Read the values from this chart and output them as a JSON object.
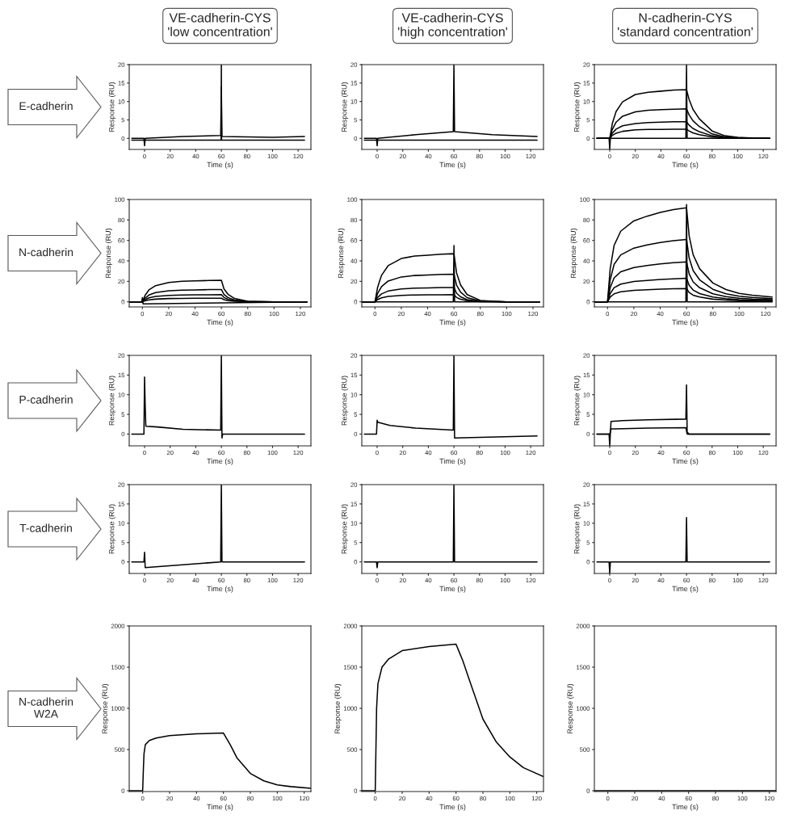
{
  "chart_data": [
    {
      "type": "line",
      "title": "VE-cadherin-CYS\n'low concentration'",
      "annotations": [
        "E-cadherin"
      ],
      "xlabel": "Time (s)",
      "ylabel": "Response (RU)",
      "xlim": [
        -12,
        130
      ],
      "ylim": [
        -3,
        20
      ],
      "xticks": [
        0,
        20,
        40,
        60,
        80,
        100,
        120
      ],
      "yticks": [
        0,
        5,
        10,
        15,
        20
      ],
      "series": [
        {
          "color": "#000000",
          "x": [
            -10,
            -0.5,
            0,
            0.5,
            30,
            59.5,
            60,
            60.5,
            100,
            125
          ],
          "values": [
            0,
            0,
            -2,
            0,
            0.5,
            0.8,
            14,
            0.5,
            0.3,
            0.5
          ]
        },
        {
          "color": "#000000",
          "x": [
            -10,
            59.8,
            60,
            60.2,
            125
          ],
          "values": [
            -0.5,
            -0.5,
            20,
            -0.5,
            -0.5
          ]
        }
      ]
    },
    {
      "type": "line",
      "title": "VE-cadherin-CYS\n'high concentration'",
      "xlabel": "Time (s)",
      "ylabel": "Response (RU)",
      "xlim": [
        -12,
        130
      ],
      "ylim": [
        -3,
        20
      ],
      "xticks": [
        0,
        20,
        40,
        60,
        80,
        100,
        120
      ],
      "yticks": [
        0,
        5,
        10,
        15,
        20
      ],
      "series": [
        {
          "color": "#000000",
          "x": [
            -10,
            -0.5,
            0,
            0.5,
            30,
            59.5,
            60,
            60.5,
            90,
            125
          ],
          "values": [
            0,
            0,
            -2,
            0,
            1,
            1.8,
            20,
            1.8,
            1,
            0.5
          ]
        },
        {
          "color": "#000000",
          "x": [
            -10,
            125
          ],
          "values": [
            -0.5,
            -0.5
          ]
        }
      ]
    },
    {
      "type": "line",
      "title": "N-cadherin-CYS\n'standard concentration'",
      "xlabel": "Time (s)",
      "ylabel": "Response (RU)",
      "xlim": [
        -12,
        130
      ],
      "ylim": [
        -3,
        20
      ],
      "xticks": [
        0,
        20,
        40,
        60,
        80,
        100,
        120
      ],
      "yticks": [
        0,
        5,
        10,
        15,
        20
      ],
      "x": [
        -10,
        0,
        2,
        5,
        10,
        20,
        30,
        40,
        50,
        60,
        62,
        65,
        70,
        80,
        90,
        100,
        110,
        125
      ],
      "series": [
        {
          "color": "#000000",
          "values": [
            0,
            0,
            4,
            7.3,
            9.9,
            11.9,
            12.5,
            12.8,
            13.1,
            13.2,
            10.6,
            7.9,
            5.3,
            2,
            0.7,
            0.3,
            0.1,
            0
          ]
        },
        {
          "color": "#000000",
          "values": [
            0,
            0,
            2.4,
            4.4,
            6,
            7.2,
            7.6,
            7.8,
            7.9,
            8,
            6.4,
            4.8,
            3.2,
            1.2,
            0.4,
            0.2,
            0.1,
            0
          ]
        },
        {
          "color": "#000000",
          "values": [
            0,
            0,
            1.4,
            2.5,
            3.4,
            4,
            4.3,
            4.4,
            4.5,
            4.5,
            3.6,
            2.7,
            1.8,
            0.7,
            0.2,
            0.1,
            0,
            0
          ]
        },
        {
          "color": "#000000",
          "values": [
            0,
            0,
            0.8,
            1.4,
            1.9,
            2.3,
            2.4,
            2.4,
            2.5,
            2.5,
            2,
            1.5,
            1,
            0.4,
            0.1,
            0,
            0,
            0
          ]
        },
        {
          "color": "#000000",
          "x": [
            -10,
            -0.5,
            0,
            0.5,
            59.5,
            60,
            60.5,
            125
          ],
          "values": [
            0,
            0,
            -3,
            0,
            0,
            20,
            0,
            0
          ]
        }
      ]
    },
    {
      "type": "line",
      "annotations": [
        "N-cadherin"
      ],
      "xlabel": "Time (s)",
      "ylabel": "Response (RU)",
      "xlim": [
        -10,
        128
      ],
      "ylim": [
        -5,
        100
      ],
      "xticks": [
        0,
        20,
        40,
        60,
        80,
        100,
        120
      ],
      "yticks": [
        0,
        20,
        40,
        60,
        80,
        100
      ],
      "x": [
        -10,
        0,
        2,
        5,
        10,
        20,
        30,
        40,
        50,
        60,
        62,
        65,
        70,
        80,
        90,
        100,
        110,
        125
      ],
      "series": [
        {
          "color": "#000000",
          "values": [
            0,
            0,
            6.3,
            11.6,
            15.8,
            18.9,
            20,
            20.4,
            20.8,
            21,
            12.6,
            7.4,
            3.2,
            0.6,
            0.2,
            0,
            0,
            0
          ]
        },
        {
          "color": "#000000",
          "values": [
            0,
            0,
            3.6,
            6.6,
            9,
            10.8,
            11.4,
            11.6,
            11.9,
            12,
            7.2,
            4.2,
            1.8,
            0.4,
            0.1,
            0,
            0,
            0
          ]
        },
        {
          "color": "#000000",
          "values": [
            0,
            0,
            2.1,
            3.9,
            5.3,
            6.3,
            6.7,
            6.8,
            6.9,
            7,
            4.2,
            2.5,
            1.1,
            0.2,
            0.1,
            0,
            0,
            0
          ]
        },
        {
          "color": "#000000",
          "values": [
            0,
            0,
            1,
            1.9,
            2.6,
            3.2,
            3.3,
            3.4,
            3.5,
            3.5,
            2.1,
            1.2,
            0.5,
            0.1,
            0,
            0,
            0,
            0
          ]
        },
        {
          "color": "#000000",
          "x": [
            -10,
            -0.5,
            0,
            0.5,
            125
          ],
          "values": [
            0,
            0,
            4,
            -2,
            0
          ]
        }
      ]
    },
    {
      "type": "line",
      "xlabel": "Time (s)",
      "ylabel": "Response (RU)",
      "xlim": [
        -10,
        128
      ],
      "ylim": [
        -5,
        100
      ],
      "xticks": [
        0,
        20,
        40,
        60,
        80,
        100,
        120
      ],
      "yticks": [
        0,
        20,
        40,
        60,
        80,
        100
      ],
      "x": [
        -10,
        0,
        2,
        5,
        10,
        20,
        30,
        40,
        50,
        60,
        62,
        65,
        70,
        80,
        90,
        100,
        110,
        125
      ],
      "series": [
        {
          "color": "#000000",
          "values": [
            0,
            0,
            14.1,
            25.9,
            35.3,
            42.3,
            44.7,
            45.6,
            46.5,
            47,
            28.2,
            16.5,
            7,
            1.4,
            0.5,
            0,
            0,
            0
          ]
        },
        {
          "color": "#000000",
          "values": [
            0,
            0,
            8.1,
            14.9,
            20.3,
            24.3,
            25.7,
            26.2,
            26.7,
            27,
            16.2,
            9.5,
            4.1,
            0.8,
            0.3,
            0,
            0,
            0
          ]
        },
        {
          "color": "#000000",
          "values": [
            0,
            0,
            4.2,
            7.7,
            10.5,
            12.6,
            13.3,
            13.6,
            13.9,
            14,
            8.4,
            4.9,
            2.1,
            0.4,
            0.1,
            0,
            0,
            0
          ]
        },
        {
          "color": "#000000",
          "values": [
            0,
            0,
            2.1,
            3.9,
            5.3,
            6.3,
            6.7,
            6.8,
            6.9,
            7,
            4.2,
            2.5,
            1.1,
            0.2,
            0.1,
            0,
            0,
            0
          ]
        },
        {
          "color": "#000000",
          "x": [
            -10,
            59.5,
            60,
            60.5,
            125
          ],
          "values": [
            0,
            0,
            55,
            0,
            0
          ]
        }
      ]
    },
    {
      "type": "line",
      "xlabel": "Time (s)",
      "ylabel": "Response (RU)",
      "xlim": [
        -10,
        128
      ],
      "ylim": [
        -5,
        100
      ],
      "xticks": [
        0,
        20,
        40,
        60,
        80,
        100,
        120
      ],
      "yticks": [
        0,
        20,
        40,
        60,
        80,
        100
      ],
      "x": [
        -10,
        0,
        2,
        5,
        10,
        20,
        30,
        40,
        50,
        60,
        62,
        65,
        70,
        80,
        90,
        100,
        110,
        125
      ],
      "series": [
        {
          "color": "#000000",
          "values": [
            0,
            0,
            32.2,
            55.2,
            69,
            79.1,
            83.7,
            87.4,
            90.2,
            92,
            64.4,
            46,
            32.2,
            18.4,
            12,
            8.3,
            6.4,
            4.6
          ]
        },
        {
          "color": "#000000",
          "values": [
            0,
            0,
            21.4,
            36.6,
            45.8,
            52.5,
            55.5,
            58,
            59.8,
            61,
            42.7,
            30.5,
            21.4,
            12.2,
            7.9,
            5.5,
            4.3,
            3.1
          ]
        },
        {
          "color": "#000000",
          "values": [
            0,
            0,
            13.7,
            23.4,
            29.3,
            33.5,
            35.5,
            37,
            38.2,
            39,
            27.3,
            19.5,
            13.7,
            7.8,
            5.1,
            3.5,
            2.7,
            2
          ]
        },
        {
          "color": "#000000",
          "values": [
            0,
            0,
            8,
            13.8,
            17.3,
            19.8,
            20.9,
            21.9,
            22.5,
            23,
            16.1,
            11.5,
            8,
            4.6,
            3,
            2.1,
            1.6,
            1.2
          ]
        },
        {
          "color": "#000000",
          "values": [
            0,
            0,
            4.6,
            7.8,
            9.8,
            11.2,
            11.8,
            12.4,
            12.7,
            13,
            9.1,
            6.5,
            4.6,
            2.6,
            1.7,
            1.2,
            0.9,
            0.7
          ]
        },
        {
          "color": "#000000",
          "x": [
            -10,
            59.5,
            60,
            60.5,
            125
          ],
          "values": [
            0,
            0,
            95,
            0,
            0
          ]
        }
      ]
    },
    {
      "type": "line",
      "annotations": [
        "P-cadherin"
      ],
      "xlabel": "Time (s)",
      "ylabel": "Response (RU)",
      "xlim": [
        -12,
        130
      ],
      "ylim": [
        -3,
        20
      ],
      "xticks": [
        0,
        20,
        40,
        60,
        80,
        100,
        120
      ],
      "yticks": [
        0,
        5,
        10,
        15,
        20
      ],
      "series": [
        {
          "color": "#000000",
          "x": [
            -10,
            -0.5,
            0,
            0.5,
            1,
            10,
            30,
            59.5,
            60,
            60.5,
            61,
            125
          ],
          "values": [
            0,
            0,
            14.5,
            7,
            2,
            1.8,
            1.2,
            1,
            20,
            -1,
            0,
            0
          ]
        }
      ]
    },
    {
      "type": "line",
      "xlabel": "Time (s)",
      "ylabel": "Response (RU)",
      "xlim": [
        -12,
        130
      ],
      "ylim": [
        -3,
        20
      ],
      "xticks": [
        0,
        20,
        40,
        60,
        80,
        100,
        120
      ],
      "yticks": [
        0,
        5,
        10,
        15,
        20
      ],
      "series": [
        {
          "color": "#000000",
          "x": [
            -10,
            -0.5,
            0,
            0.5,
            10,
            30,
            59.5,
            60,
            60.5,
            125
          ],
          "values": [
            0,
            0,
            3.5,
            3,
            2.2,
            1.5,
            1,
            20,
            -1,
            -0.5
          ]
        }
      ]
    },
    {
      "type": "line",
      "xlabel": "Time (s)",
      "ylabel": "Response (RU)",
      "xlim": [
        -12,
        130
      ],
      "ylim": [
        -3,
        20
      ],
      "xticks": [
        0,
        20,
        40,
        60,
        80,
        100,
        120
      ],
      "yticks": [
        0,
        5,
        10,
        15,
        20
      ],
      "series": [
        {
          "color": "#000000",
          "x": [
            -10,
            -0.5,
            0,
            1,
            10,
            30,
            59.5,
            60,
            60.5,
            62,
            125
          ],
          "values": [
            0,
            0,
            -3,
            3.2,
            3.4,
            3.6,
            3.8,
            12.5,
            0.5,
            0,
            0
          ]
        },
        {
          "color": "#000000",
          "x": [
            -10,
            0,
            1,
            30,
            59.5,
            60.5,
            125
          ],
          "values": [
            0,
            0,
            1.3,
            1.5,
            1.6,
            0,
            0
          ]
        }
      ]
    },
    {
      "type": "line",
      "annotations": [
        "T-cadherin"
      ],
      "xlabel": "Time (s)",
      "ylabel": "Response (RU)",
      "xlim": [
        -12,
        130
      ],
      "ylim": [
        -3,
        20
      ],
      "xticks": [
        0,
        20,
        40,
        60,
        80,
        100,
        120
      ],
      "yticks": [
        0,
        5,
        10,
        15,
        20
      ],
      "series": [
        {
          "color": "#000000",
          "x": [
            -10,
            -0.5,
            0,
            0.5,
            59.5,
            60,
            60.5,
            125
          ],
          "values": [
            0,
            0,
            2.5,
            -1.5,
            0,
            20,
            0,
            0
          ]
        }
      ]
    },
    {
      "type": "line",
      "xlabel": "Time (s)",
      "ylabel": "Response (RU)",
      "xlim": [
        -12,
        130
      ],
      "ylim": [
        -3,
        20
      ],
      "xticks": [
        0,
        20,
        40,
        60,
        80,
        100,
        120
      ],
      "yticks": [
        0,
        5,
        10,
        15,
        20
      ],
      "series": [
        {
          "color": "#000000",
          "x": [
            -10,
            -0.5,
            0,
            0.5,
            59.5,
            60,
            60.5,
            125
          ],
          "values": [
            0,
            0,
            -1.5,
            0,
            0,
            20,
            0,
            0
          ]
        }
      ]
    },
    {
      "type": "line",
      "xlabel": "Time (s)",
      "ylabel": "Response (RU)",
      "xlim": [
        -12,
        130
      ],
      "ylim": [
        -3,
        20
      ],
      "xticks": [
        0,
        20,
        40,
        60,
        80,
        100,
        120
      ],
      "yticks": [
        0,
        5,
        10,
        15,
        20
      ],
      "series": [
        {
          "color": "#000000",
          "x": [
            -10,
            -0.5,
            0,
            0.5,
            59.5,
            60,
            60.5,
            125
          ],
          "values": [
            0,
            0,
            -3,
            0,
            0,
            11.5,
            0,
            0
          ]
        }
      ]
    },
    {
      "type": "line",
      "annotations": [
        "N-cadherin\nW2A"
      ],
      "xlabel": "Time (s)",
      "ylabel": "Response (RU)",
      "xlim": [
        -10,
        125
      ],
      "ylim": [
        -10,
        2000
      ],
      "xticks": [
        0,
        20,
        40,
        60,
        80,
        100,
        120
      ],
      "yticks": [
        0,
        500,
        1000,
        1500,
        2000
      ],
      "series": [
        {
          "color": "#000000",
          "x": [
            -10,
            0,
            0.5,
            1,
            2,
            5,
            10,
            20,
            40,
            60,
            65,
            70,
            80,
            90,
            100,
            110,
            125
          ],
          "values": [
            0,
            0,
            250,
            450,
            560,
            610,
            640,
            670,
            690,
            700,
            560,
            400,
            210,
            120,
            70,
            50,
            30
          ]
        }
      ]
    },
    {
      "type": "line",
      "xlabel": "Time (s)",
      "ylabel": "Response (RU)",
      "xlim": [
        -10,
        125
      ],
      "ylim": [
        -10,
        2000
      ],
      "xticks": [
        0,
        20,
        40,
        60,
        80,
        100,
        120
      ],
      "yticks": [
        0,
        500,
        1000,
        1500,
        2000
      ],
      "series": [
        {
          "color": "#000000",
          "x": [
            -10,
            0,
            1,
            2,
            5,
            10,
            20,
            40,
            60,
            62,
            65,
            70,
            80,
            90,
            100,
            110,
            125
          ],
          "values": [
            0,
            0,
            1000,
            1300,
            1500,
            1600,
            1700,
            1750,
            1780,
            1700,
            1580,
            1340,
            870,
            590,
            410,
            280,
            170
          ]
        }
      ]
    },
    {
      "type": "line",
      "xlabel": "Time (s)",
      "ylabel": "Response (RU)",
      "xlim": [
        -10,
        125
      ],
      "ylim": [
        -10,
        2000
      ],
      "xticks": [
        0,
        20,
        40,
        60,
        80,
        100,
        120
      ],
      "yticks": [
        0,
        500,
        1000,
        1500,
        2000
      ],
      "series": [
        {
          "color": "#000000",
          "x": [
            -10,
            125
          ],
          "values": [
            0,
            0
          ]
        }
      ]
    }
  ]
}
